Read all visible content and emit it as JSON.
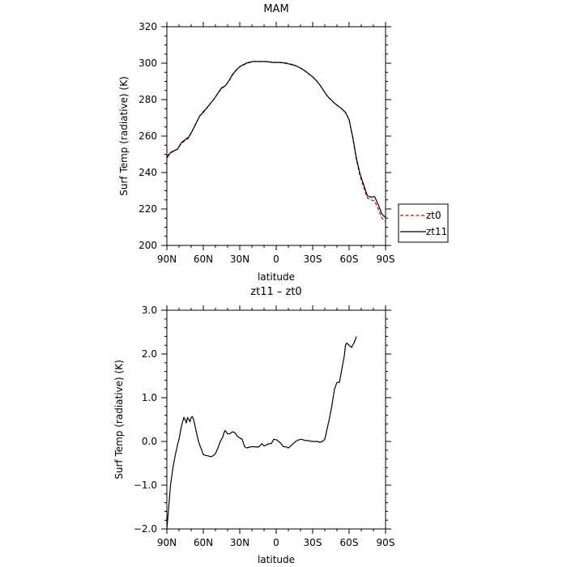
{
  "chart_data": [
    {
      "type": "line",
      "title": "MAM",
      "xlabel": "latitude",
      "ylabel": "Surf Temp (radiative) (K)",
      "xlim": [
        90,
        -90
      ],
      "ylim": [
        200,
        320
      ],
      "x_ticks": [
        {
          "value": 90,
          "label": "90N"
        },
        {
          "value": 60,
          "label": "60N"
        },
        {
          "value": 30,
          "label": "30N"
        },
        {
          "value": 0,
          "label": "0"
        },
        {
          "value": -30,
          "label": "30S"
        },
        {
          "value": -60,
          "label": "60S"
        },
        {
          "value": -90,
          "label": "90S"
        }
      ],
      "y_ticks": [
        {
          "value": 200,
          "label": "200"
        },
        {
          "value": 220,
          "label": "220"
        },
        {
          "value": 240,
          "label": "240"
        },
        {
          "value": 260,
          "label": "260"
        },
        {
          "value": 280,
          "label": "280"
        },
        {
          "value": 300,
          "label": "300"
        },
        {
          "value": 320,
          "label": "320"
        }
      ],
      "legend_position": "outside-right",
      "series": [
        {
          "name": "zt0",
          "color": "#cc0000",
          "dash": "dashed",
          "points": [
            [
              90,
              249
            ],
            [
              87,
              251
            ],
            [
              84,
              251.5
            ],
            [
              81,
              253
            ],
            [
              78,
              256
            ],
            [
              75,
              257.5
            ],
            [
              72,
              259
            ],
            [
              69,
              263
            ],
            [
              66,
              267
            ],
            [
              63,
              271
            ],
            [
              60,
              273.5
            ],
            [
              57,
              275.5
            ],
            [
              54,
              278
            ],
            [
              51,
              280.5
            ],
            [
              48,
              283.5
            ],
            [
              45,
              286
            ],
            [
              42,
              287.5
            ],
            [
              39,
              290
            ],
            [
              36,
              293.5
            ],
            [
              33,
              296
            ],
            [
              30,
              298
            ],
            [
              27,
              299
            ],
            [
              24,
              300
            ],
            [
              21,
              300.5
            ],
            [
              18,
              301
            ],
            [
              15,
              301
            ],
            [
              12,
              301
            ],
            [
              9,
              301
            ],
            [
              6,
              300.8
            ],
            [
              3,
              300.5
            ],
            [
              0,
              300.5
            ],
            [
              -3,
              300.5
            ],
            [
              -6,
              300.3
            ],
            [
              -9,
              300
            ],
            [
              -12,
              299.5
            ],
            [
              -15,
              299
            ],
            [
              -18,
              298
            ],
            [
              -21,
              297
            ],
            [
              -24,
              295.5
            ],
            [
              -27,
              294
            ],
            [
              -30,
              292.5
            ],
            [
              -33,
              290.5
            ],
            [
              -36,
              288
            ],
            [
              -39,
              285
            ],
            [
              -42,
              282
            ],
            [
              -45,
              280
            ],
            [
              -48,
              278
            ],
            [
              -51,
              276.5
            ],
            [
              -54,
              275
            ],
            [
              -57,
              273
            ],
            [
              -60,
              269
            ],
            [
              -63,
              259
            ],
            [
              -66,
              247
            ],
            [
              -69,
              238
            ],
            [
              -72,
              232
            ],
            [
              -75,
              226
            ],
            [
              -78,
              225
            ],
            [
              -81,
              224.5
            ],
            [
              -84,
              220
            ],
            [
              -87,
              215
            ],
            [
              -90,
              213
            ]
          ]
        },
        {
          "name": "zt11",
          "color": "#000000",
          "dash": "solid",
          "points": [
            [
              90,
              248
            ],
            [
              87,
              251
            ],
            [
              84,
              252
            ],
            [
              81,
              253
            ],
            [
              78,
              256.5
            ],
            [
              75,
              258
            ],
            [
              72,
              259.5
            ],
            [
              69,
              263
            ],
            [
              66,
              267
            ],
            [
              63,
              271
            ],
            [
              60,
              273
            ],
            [
              57,
              275.5
            ],
            [
              54,
              278
            ],
            [
              51,
              280.5
            ],
            [
              48,
              283.5
            ],
            [
              45,
              286.5
            ],
            [
              42,
              287.5
            ],
            [
              39,
              290.3
            ],
            [
              36,
              293.8
            ],
            [
              33,
              296.2
            ],
            [
              30,
              298.1
            ],
            [
              27,
              299.2
            ],
            [
              24,
              300.2
            ],
            [
              21,
              300.7
            ],
            [
              18,
              301
            ],
            [
              15,
              300.9
            ],
            [
              12,
              300.9
            ],
            [
              9,
              300.9
            ],
            [
              6,
              300.7
            ],
            [
              3,
              300.4
            ],
            [
              0,
              300.4
            ],
            [
              -3,
              300.4
            ],
            [
              -6,
              300.2
            ],
            [
              -9,
              299.8
            ],
            [
              -12,
              299.3
            ],
            [
              -15,
              298.9
            ],
            [
              -18,
              298
            ],
            [
              -21,
              297
            ],
            [
              -24,
              295.6
            ],
            [
              -27,
              294.1
            ],
            [
              -30,
              292.5
            ],
            [
              -33,
              290.5
            ],
            [
              -36,
              288
            ],
            [
              -39,
              285
            ],
            [
              -42,
              282
            ],
            [
              -45,
              280
            ],
            [
              -48,
              278
            ],
            [
              -51,
              276.5
            ],
            [
              -54,
              275
            ],
            [
              -57,
              273
            ],
            [
              -60,
              269
            ],
            [
              -63,
              259.5
            ],
            [
              -66,
              247.8
            ],
            [
              -69,
              239.2
            ],
            [
              -72,
              233.3
            ],
            [
              -75,
              227.2
            ],
            [
              -78,
              226.5
            ],
            [
              -81,
              226.8
            ],
            [
              -84,
              222.3
            ],
            [
              -87,
              217.2
            ],
            [
              -90,
              215.3
            ]
          ]
        }
      ]
    },
    {
      "type": "line",
      "title": "zt11 – zt0",
      "xlabel": "latitude",
      "ylabel": "Surf Temp (radiative) (K)",
      "xlim": [
        90,
        -90
      ],
      "ylim": [
        -2.0,
        3.0
      ],
      "x_ticks": [
        {
          "value": 90,
          "label": "90N"
        },
        {
          "value": 60,
          "label": "60N"
        },
        {
          "value": 30,
          "label": "30N"
        },
        {
          "value": 0,
          "label": "0"
        },
        {
          "value": -30,
          "label": "30S"
        },
        {
          "value": -60,
          "label": "60S"
        },
        {
          "value": -90,
          "label": "90S"
        }
      ],
      "y_ticks": [
        {
          "value": -2.0,
          "label": "−2.0"
        },
        {
          "value": -1.0,
          "label": "−1.0"
        },
        {
          "value": 0.0,
          "label": "0.0"
        },
        {
          "value": 1.0,
          "label": "1.0"
        },
        {
          "value": 2.0,
          "label": "2.0"
        },
        {
          "value": 3.0,
          "label": "3.0"
        }
      ],
      "series": [
        {
          "color": "#000000",
          "dash": "solid",
          "points": [
            [
              90,
              -2.0
            ],
            [
              88.5,
              -1.5
            ],
            [
              87,
              -1.0
            ],
            [
              85,
              -0.6
            ],
            [
              83,
              -0.3
            ],
            [
              81,
              -0.05
            ],
            [
              80,
              0.05
            ],
            [
              78,
              0.35
            ],
            [
              76,
              0.55
            ],
            [
              75,
              0.5
            ],
            [
              74,
              0.42
            ],
            [
              73,
              0.55
            ],
            [
              72,
              0.5
            ],
            [
              71,
              0.45
            ],
            [
              70,
              0.55
            ],
            [
              69,
              0.57
            ],
            [
              68,
              0.5
            ],
            [
              66,
              0.25
            ],
            [
              64,
              0.0
            ],
            [
              62,
              -0.15
            ],
            [
              60,
              -0.3
            ],
            [
              58,
              -0.32
            ],
            [
              56,
              -0.33
            ],
            [
              54,
              -0.35
            ],
            [
              52,
              -0.33
            ],
            [
              50,
              -0.28
            ],
            [
              48,
              -0.15
            ],
            [
              46,
              0.0
            ],
            [
              44,
              0.1
            ],
            [
              43,
              0.2
            ],
            [
              42,
              0.25
            ],
            [
              40,
              0.17
            ],
            [
              38,
              0.18
            ],
            [
              36,
              0.22
            ],
            [
              34,
              0.2
            ],
            [
              32,
              0.12
            ],
            [
              30,
              0.08
            ],
            [
              28,
              0.05
            ],
            [
              26,
              -0.12
            ],
            [
              24,
              -0.15
            ],
            [
              22,
              -0.13
            ],
            [
              20,
              -0.12
            ],
            [
              18,
              -0.12
            ],
            [
              16,
              -0.13
            ],
            [
              14,
              -0.12
            ],
            [
              12,
              -0.05
            ],
            [
              10,
              -0.1
            ],
            [
              8,
              -0.08
            ],
            [
              6,
              -0.05
            ],
            [
              4,
              -0.05
            ],
            [
              2,
              0.05
            ],
            [
              0,
              0.04
            ],
            [
              -2,
              0.0
            ],
            [
              -4,
              -0.05
            ],
            [
              -6,
              -0.12
            ],
            [
              -8,
              -0.12
            ],
            [
              -10,
              -0.15
            ],
            [
              -12,
              -0.1
            ],
            [
              -14,
              -0.05
            ],
            [
              -16,
              0.0
            ],
            [
              -18,
              0.03
            ],
            [
              -20,
              0.05
            ],
            [
              -22,
              0.04
            ],
            [
              -24,
              0.02
            ],
            [
              -26,
              0.02
            ],
            [
              -28,
              0.01
            ],
            [
              -30,
              0.0
            ],
            [
              -32,
              0.0
            ],
            [
              -34,
              0.0
            ],
            [
              -36,
              -0.02
            ],
            [
              -38,
              0.0
            ],
            [
              -40,
              0.05
            ],
            [
              -42,
              0.3
            ],
            [
              -44,
              0.55
            ],
            [
              -46,
              0.85
            ],
            [
              -48,
              1.2
            ],
            [
              -50,
              1.35
            ],
            [
              -52,
              1.35
            ],
            [
              -54,
              1.65
            ],
            [
              -56,
              1.95
            ],
            [
              -57,
              2.2
            ],
            [
              -58,
              2.25
            ],
            [
              -60,
              2.2
            ],
            [
              -62,
              2.15
            ],
            [
              -64,
              2.25
            ],
            [
              -66,
              2.4
            ]
          ]
        }
      ]
    }
  ]
}
